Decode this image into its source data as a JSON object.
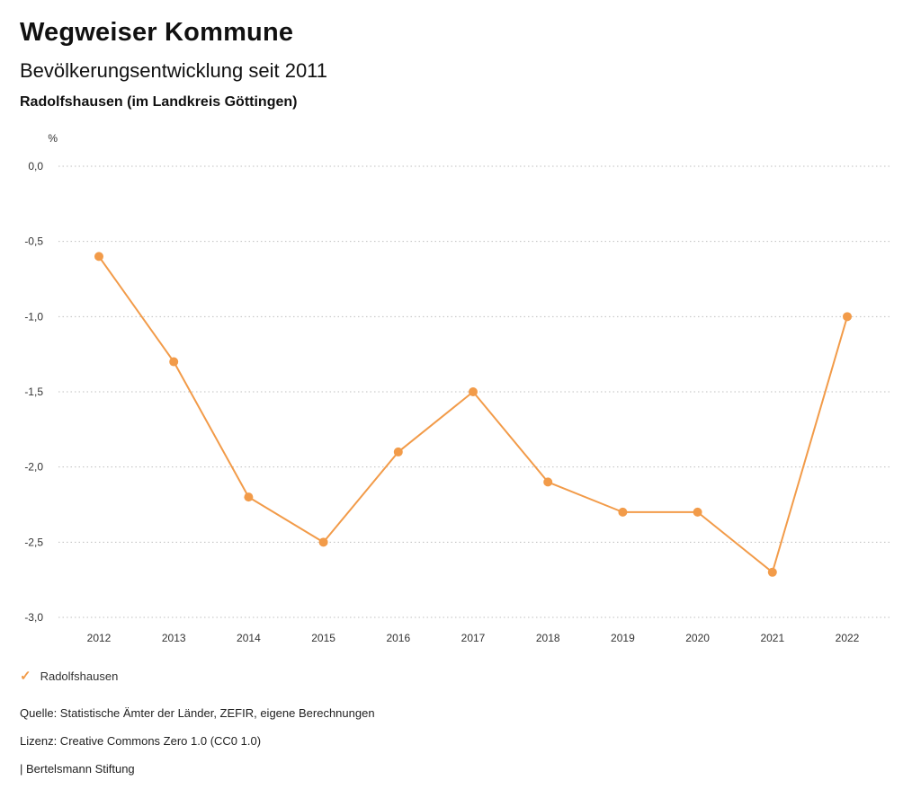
{
  "header": {
    "title": "Wegweiser Kommune",
    "subtitle": "Bevölkerungsentwicklung seit 2011",
    "region": "Radolfshausen (im Landkreis Göttingen)"
  },
  "chart_data": {
    "type": "line",
    "title": "Bevölkerungsentwicklung seit 2011",
    "unit_label": "%",
    "categories": [
      "2012",
      "2013",
      "2014",
      "2015",
      "2016",
      "2017",
      "2018",
      "2019",
      "2020",
      "2021",
      "2022"
    ],
    "series": [
      {
        "name": "Radolfshausen",
        "color": "#f29b49",
        "values": [
          -0.6,
          -1.3,
          -2.2,
          -2.5,
          -1.9,
          -1.5,
          -2.1,
          -2.3,
          -2.3,
          -2.7,
          -1.0
        ]
      }
    ],
    "ylim": [
      -3.0,
      0.0
    ],
    "ytick_step": 0.5,
    "yticks": [
      0.0,
      -0.5,
      -1.0,
      -1.5,
      -2.0,
      -2.5,
      -3.0
    ],
    "ytick_labels": [
      "0,0",
      "-0,5",
      "-1,0",
      "-1,5",
      "-2,0",
      "-2,5",
      "-3,0"
    ],
    "grid": "dotted-horizontal",
    "legend_position": "bottom-left"
  },
  "legend": {
    "items": [
      {
        "label": "Radolfshausen",
        "color": "#f29b49",
        "icon": "check"
      }
    ]
  },
  "footer": {
    "source": "Quelle: Statistische Ämter der Länder, ZEFIR, eigene Berechnungen",
    "license": "Lizenz: Creative Commons Zero 1.0 (CC0 1.0)",
    "branding": "| Bertelsmann Stiftung"
  },
  "colors": {
    "accent": "#f29b49",
    "grid": "#bfbfbf",
    "text": "#1a1a1a"
  }
}
